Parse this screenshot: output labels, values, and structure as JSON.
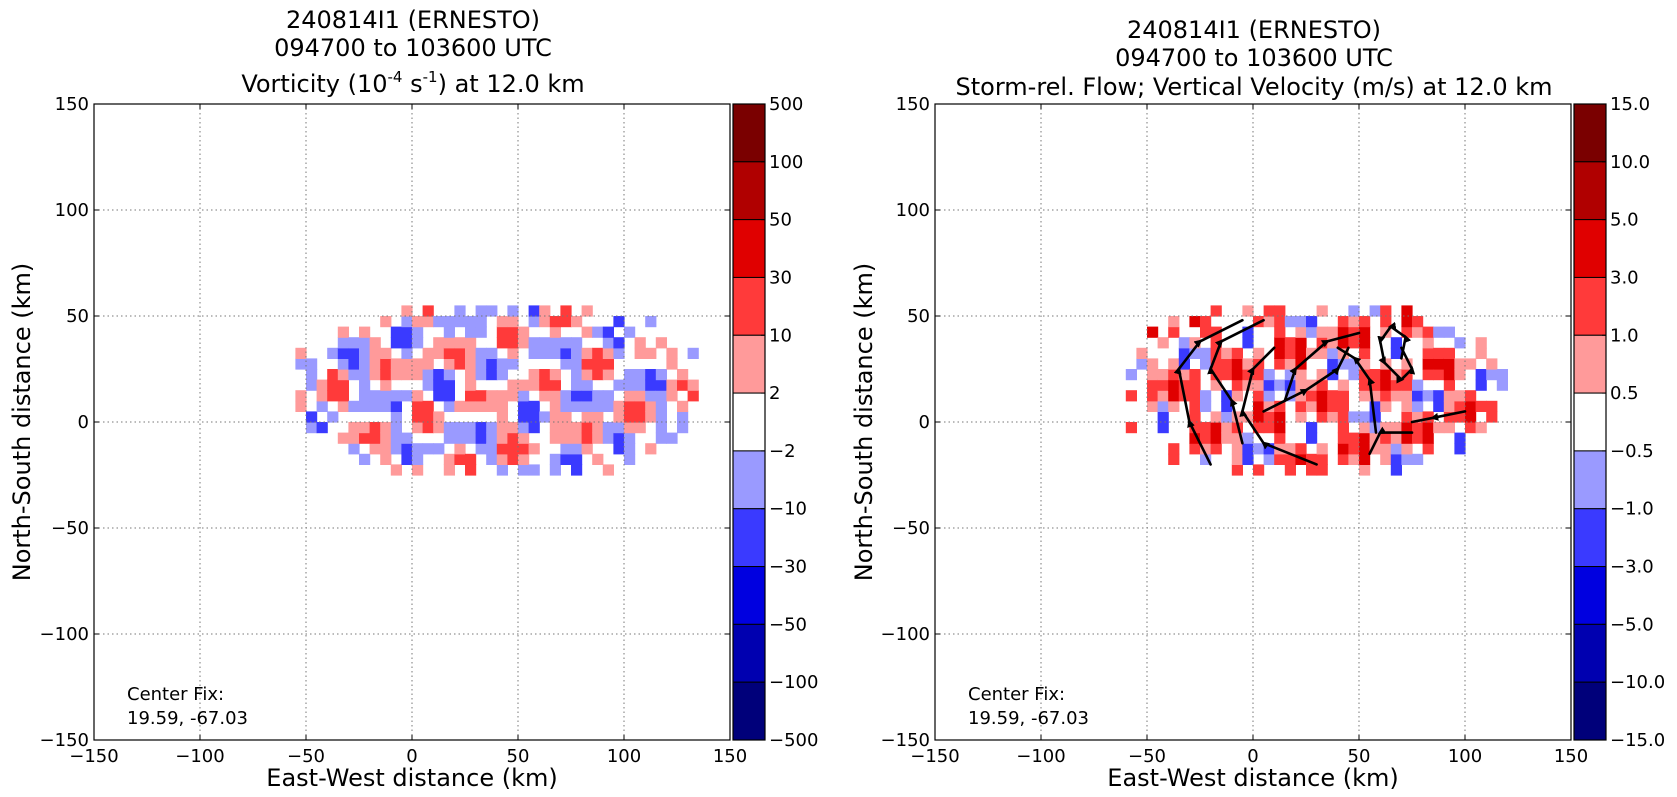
{
  "chart_data": [
    {
      "type": "heatmap",
      "title": [
        "240814I1 (ERNESTO)",
        "094700 to 103600 UTC"
      ],
      "subtitle": {
        "pre": "Vorticity (10",
        "exp1": "-4",
        "mid": " s",
        "exp2": "-1",
        "post": ") at 12.0 km"
      },
      "xlabel": "East-West distance (km)",
      "ylabel": "North-South distance (km)",
      "xlim": [
        -150,
        150
      ],
      "ylim": [
        -150,
        150
      ],
      "xticks": [
        -150,
        -100,
        -50,
        0,
        50,
        100,
        150
      ],
      "yticks": [
        -150,
        -100,
        -50,
        0,
        50,
        100,
        150
      ],
      "xtick_labels": [
        "−150",
        "−100",
        "−50",
        "0",
        "50",
        "100",
        "150"
      ],
      "ytick_labels": [
        "−150",
        "−100",
        "−50",
        "0",
        "50",
        "100",
        "150"
      ],
      "grid": true,
      "annotation": [
        "Center Fix:",
        "19.59, -67.03"
      ],
      "colorbar": {
        "labels": [
          "500",
          "100",
          "50",
          "30",
          "10",
          "2",
          "−2",
          "−10",
          "−30",
          "−50",
          "−100",
          "−500"
        ],
        "colors": [
          "#7a0000",
          "#b00000",
          "#e00000",
          "#ff3a3a",
          "#ff9a9a",
          "#ffffff",
          "#9a9aff",
          "#3a3aff",
          "#0000e0",
          "#0000b0",
          "#00007a"
        ]
      },
      "field_extent": {
        "x": [
          -55,
          135
        ],
        "y": [
          -25,
          55
        ]
      },
      "data_note": "filled contour field (vorticity) at 12.0 km"
    },
    {
      "type": "heatmap",
      "title": [
        "240814I1 (ERNESTO)",
        "094700 to 103600 UTC"
      ],
      "subtitle": {
        "text": "Storm-rel. Flow; Vertical Velocity (m/s) at 12.0 km"
      },
      "xlabel": "East-West distance (km)",
      "ylabel": "North-South distance (km)",
      "xlim": [
        -150,
        150
      ],
      "ylim": [
        -150,
        150
      ],
      "xticks": [
        -150,
        -100,
        -50,
        0,
        50,
        100,
        150
      ],
      "yticks": [
        -150,
        -100,
        -50,
        0,
        50,
        100,
        150
      ],
      "xtick_labels": [
        "−150",
        "−100",
        "−50",
        "0",
        "50",
        "100",
        "150"
      ],
      "ytick_labels": [
        "−150",
        "−100",
        "−50",
        "0",
        "50",
        "100",
        "150"
      ],
      "grid": true,
      "annotation": [
        "Center Fix:",
        "19.59, -67.03"
      ],
      "colorbar": {
        "labels": [
          "15.0",
          "10.0",
          "5.0",
          "3.0",
          "1.0",
          "0.5",
          "−0.5",
          "−1.0",
          "−3.0",
          "−5.0",
          "−10.0",
          "−15.0"
        ],
        "colors": [
          "#7a0000",
          "#b00000",
          "#e00000",
          "#ff3a3a",
          "#ff9a9a",
          "#ffffff",
          "#9a9aff",
          "#3a3aff",
          "#0000e0",
          "#0000b0",
          "#00007a"
        ]
      },
      "field_extent": {
        "x": [
          -60,
          120
        ],
        "y": [
          -25,
          55
        ]
      },
      "data_note": "filled contour field (vertical velocity) with storm-relative streamlines at 12.0 km"
    }
  ]
}
